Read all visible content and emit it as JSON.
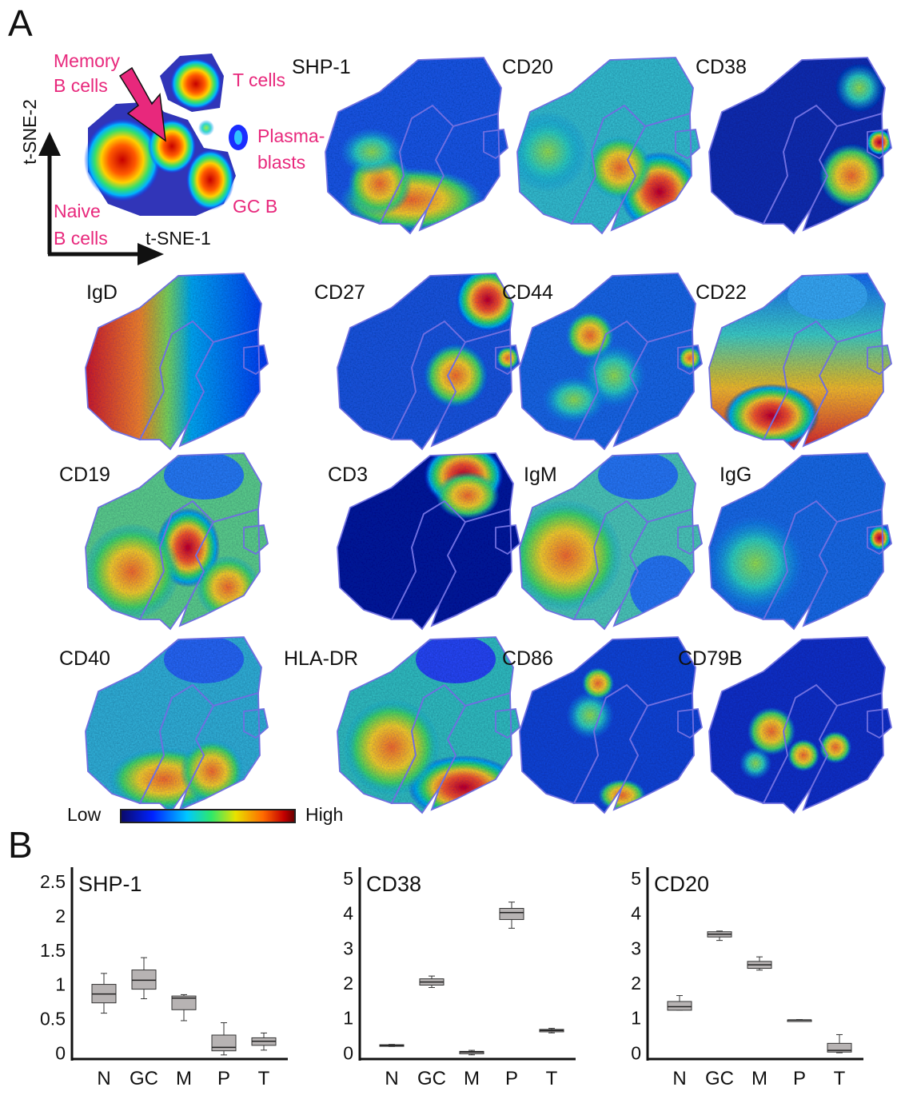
{
  "figure": {
    "panel_a_label": "A",
    "panel_b_label": "B",
    "axis_y_label": "t-SNE-2",
    "axis_x_label": "t-SNE-1",
    "populations": {
      "memory_b": [
        "Memory",
        "B cells"
      ],
      "t_cells": "T cells",
      "plasmablasts": [
        "Plasma-",
        "blasts"
      ],
      "naive_b": [
        "Naive",
        "B cells"
      ],
      "gc_b": "GC B"
    },
    "markers": [
      "SHP-1",
      "CD20",
      "CD38",
      "IgD",
      "CD27",
      "CD44",
      "CD22",
      "CD19",
      "CD3",
      "IgM",
      "IgG",
      "CD40",
      "HLA-DR",
      "CD86",
      "CD79B"
    ],
    "legend": {
      "low": "Low",
      "high": "High"
    },
    "colors": {
      "population_label": "#e8287c",
      "gate_outline": "#6f6fe0",
      "box_fill": "#b7b3b3"
    }
  },
  "chart_data": [
    {
      "type": "box",
      "title": "SHP-1",
      "categories": [
        "N",
        "GC",
        "M",
        "P",
        "T"
      ],
      "ylim": [
        -0.1,
        2.7
      ],
      "yticks": [
        "0",
        "0.5",
        "1",
        "1.5",
        "2",
        "2.5"
      ],
      "ytick_values": [
        0,
        0.5,
        1,
        1.5,
        2,
        2.5
      ],
      "boxes": [
        {
          "min": 0.57,
          "q1": 0.72,
          "median": 0.85,
          "q3": 0.99,
          "max": 1.15
        },
        {
          "min": 0.78,
          "q1": 0.92,
          "median": 1.05,
          "q3": 1.2,
          "max": 1.38
        },
        {
          "min": 0.46,
          "q1": 0.62,
          "median": 0.79,
          "q3": 0.82,
          "max": 0.84
        },
        {
          "min": -0.04,
          "q1": 0.02,
          "median": 0.07,
          "q3": 0.25,
          "max": 0.43
        },
        {
          "min": 0.03,
          "q1": 0.1,
          "median": 0.16,
          "q3": 0.21,
          "max": 0.28
        }
      ]
    },
    {
      "type": "box",
      "title": "CD38",
      "categories": [
        "N",
        "GC",
        "M",
        "P",
        "T"
      ],
      "ylim": [
        -0.2,
        5.3
      ],
      "yticks": [
        "0",
        "1",
        "2",
        "3",
        "4",
        "5"
      ],
      "ytick_values": [
        0,
        1,
        2,
        3,
        4,
        5
      ],
      "boxes": [
        {
          "min": 0.16,
          "q1": 0.17,
          "median": 0.19,
          "q3": 0.21,
          "max": 0.22
        },
        {
          "min": 1.85,
          "q1": 1.92,
          "median": 2.01,
          "q3": 2.1,
          "max": 2.18
        },
        {
          "min": -0.08,
          "q1": -0.05,
          "median": 0.0,
          "q3": 0.02,
          "max": 0.05
        },
        {
          "min": 3.55,
          "q1": 3.8,
          "median": 4.0,
          "q3": 4.12,
          "max": 4.3
        },
        {
          "min": 0.55,
          "q1": 0.58,
          "median": 0.62,
          "q3": 0.65,
          "max": 0.68
        }
      ]
    },
    {
      "type": "box",
      "title": "CD20",
      "categories": [
        "N",
        "GC",
        "M",
        "P",
        "T"
      ],
      "ylim": [
        -0.2,
        5.3
      ],
      "yticks": [
        "0",
        "1",
        "2",
        "3",
        "4",
        "5"
      ],
      "ytick_values": [
        0,
        1,
        2,
        3,
        4,
        5
      ],
      "boxes": [
        {
          "min": 1.2,
          "q1": 1.2,
          "median": 1.3,
          "q3": 1.45,
          "max": 1.62
        },
        {
          "min": 3.2,
          "q1": 3.3,
          "median": 3.38,
          "q3": 3.45,
          "max": 3.47
        },
        {
          "min": 2.35,
          "q1": 2.4,
          "median": 2.5,
          "q3": 2.6,
          "max": 2.73
        },
        {
          "min": 0.9,
          "q1": 0.9,
          "median": 0.92,
          "q3": 0.92,
          "max": 0.93
        },
        {
          "min": -0.02,
          "q1": 0.0,
          "median": 0.05,
          "q3": 0.25,
          "max": 0.5
        }
      ]
    }
  ]
}
